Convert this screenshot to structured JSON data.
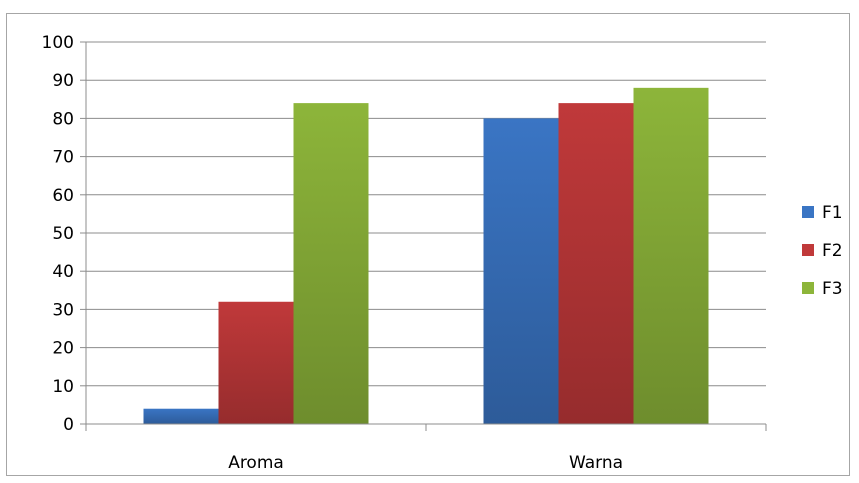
{
  "chart_data": {
    "type": "bar",
    "categories": [
      "Aroma",
      "Warna"
    ],
    "series": [
      {
        "name": "F1",
        "values": [
          4,
          80
        ],
        "color": "#3a75c4"
      },
      {
        "name": "F2",
        "values": [
          32,
          84
        ],
        "color": "#c0393a"
      },
      {
        "name": "F3",
        "values": [
          84,
          88
        ],
        "color": "#8db53a"
      }
    ],
    "ylim": [
      0,
      100
    ],
    "yticks": [
      0,
      10,
      20,
      30,
      40,
      50,
      60,
      70,
      80,
      90,
      100
    ],
    "grid": true,
    "legend": "right",
    "title": "",
    "xlabel": "",
    "ylabel": ""
  }
}
